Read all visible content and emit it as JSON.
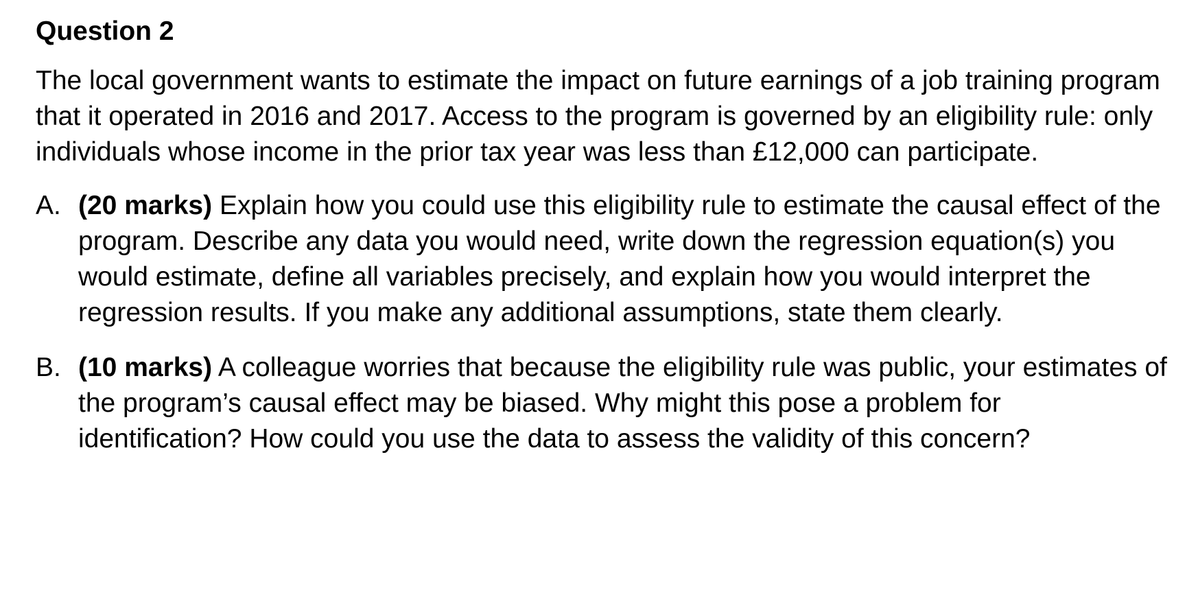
{
  "question": {
    "title": "Question 2",
    "intro": "The local government wants to estimate the impact on future earnings of a job training program that it operated in 2016 and 2017. Access to the program is governed by an eligibility rule: only individuals whose income in the prior tax year was less than £12,000 can participate."
  },
  "parts": [
    {
      "letter": "A.",
      "marks": "(20 marks)",
      "text": "Explain how you could use this eligibility rule to estimate the causal effect of the program. Describe any data you would need, write down the regression equation(s) you would estimate, define all variables precisely, and explain how you would interpret the regression results. If you make any additional assumptions, state them clearly."
    },
    {
      "letter": "B.",
      "marks": "(10 marks)",
      "text": "A colleague worries that because the eligibility rule was public, your estimates of the program’s causal effect may be biased. Why might this pose a problem for identification? How could you use the data to assess the validity of this concern?"
    }
  ]
}
